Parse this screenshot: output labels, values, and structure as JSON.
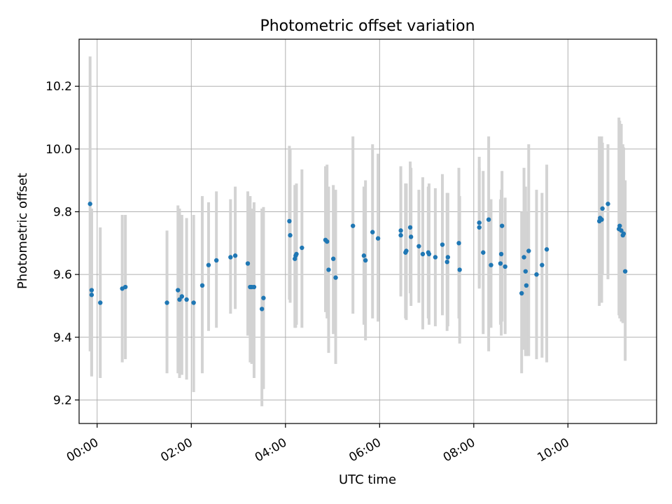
{
  "chart_data": {
    "type": "scatter",
    "title": "Photometric offset variation",
    "xlabel": "UTC time",
    "ylabel": "Photometric offset",
    "xlim": [
      "23:37",
      "11:53"
    ],
    "ylim": [
      9.125,
      10.35
    ],
    "grid": true,
    "xticks": [
      "00:00",
      "02:00",
      "04:00",
      "06:00",
      "08:00",
      "10:00"
    ],
    "yticks": [
      "9.2",
      "9.4",
      "9.6",
      "9.8",
      "10.0",
      "10.2"
    ],
    "colors": {
      "point": "#1f77b4",
      "errorbar": "#d3d3d3",
      "grid": "#b0b0b0"
    },
    "series": [
      {
        "x": [
          "23:51",
          "23:53",
          "23:53",
          "00:04",
          "00:32",
          "00:36",
          "01:29",
          "01:43",
          "01:45",
          "01:48",
          "01:54",
          "02:03",
          "02:14",
          "02:22",
          "02:32",
          "02:50",
          "02:56",
          "03:12",
          "03:15",
          "03:17",
          "03:20",
          "03:30",
          "03:32",
          "04:05",
          "04:06",
          "04:12",
          "04:13",
          "04:14",
          "04:21",
          "04:51",
          "04:53",
          "04:55",
          "05:01",
          "05:04",
          "05:26",
          "05:40",
          "05:42",
          "05:51",
          "05:58",
          "06:27",
          "06:27",
          "06:33",
          "06:34",
          "06:39",
          "06:40",
          "06:50",
          "06:55",
          "07:02",
          "07:03",
          "07:11",
          "07:20",
          "07:26",
          "07:27",
          "07:41",
          "07:42",
          "08:07",
          "08:07",
          "08:12",
          "08:19",
          "08:22",
          "08:34",
          "08:35",
          "08:36",
          "08:40",
          "09:01",
          "09:04",
          "09:06",
          "09:07",
          "09:10",
          "09:20",
          "09:27",
          "09:33",
          "10:40",
          "10:41",
          "10:43",
          "10:44",
          "10:51",
          "11:05",
          "11:06",
          "11:08",
          "11:10",
          "11:11",
          "11:13"
        ],
        "y": [
          9.825,
          9.55,
          9.535,
          9.51,
          9.555,
          9.56,
          9.51,
          9.55,
          9.52,
          9.53,
          9.52,
          9.51,
          9.565,
          9.63,
          9.645,
          9.655,
          9.66,
          9.635,
          9.56,
          9.56,
          9.56,
          9.49,
          9.525,
          9.77,
          9.725,
          9.65,
          9.66,
          9.665,
          9.685,
          9.71,
          9.705,
          9.615,
          9.65,
          9.59,
          9.755,
          9.66,
          9.645,
          9.735,
          9.715,
          9.74,
          9.725,
          9.67,
          9.675,
          9.75,
          9.72,
          9.69,
          9.665,
          9.67,
          9.665,
          9.655,
          9.695,
          9.64,
          9.655,
          9.7,
          9.615,
          9.765,
          9.75,
          9.67,
          9.775,
          9.63,
          9.635,
          9.665,
          9.755,
          9.625,
          9.54,
          9.655,
          9.61,
          9.565,
          9.675,
          9.6,
          9.63,
          9.68,
          9.77,
          9.78,
          9.775,
          9.81,
          9.825,
          9.745,
          9.755,
          9.74,
          9.725,
          9.73,
          9.61
        ],
        "yerr_low": [
          9.355,
          9.28,
          9.275,
          9.27,
          9.32,
          9.33,
          9.285,
          9.285,
          9.27,
          9.28,
          9.265,
          9.225,
          9.285,
          9.42,
          9.43,
          9.475,
          9.49,
          9.405,
          9.32,
          9.315,
          9.27,
          9.18,
          9.235,
          9.52,
          9.51,
          9.43,
          9.43,
          9.44,
          9.43,
          9.48,
          9.46,
          9.35,
          9.41,
          9.315,
          9.475,
          9.44,
          9.39,
          9.46,
          9.45,
          9.53,
          9.55,
          9.46,
          9.455,
          9.54,
          9.5,
          9.51,
          9.425,
          9.46,
          9.44,
          9.435,
          9.47,
          9.42,
          9.435,
          9.46,
          9.38,
          9.555,
          9.56,
          9.41,
          9.355,
          9.43,
          9.44,
          9.405,
          9.45,
          9.41,
          9.285,
          9.36,
          9.34,
          9.34,
          9.34,
          9.33,
          9.335,
          9.32,
          9.5,
          9.55,
          9.51,
          9.6,
          9.585,
          9.47,
          9.46,
          9.45,
          9.445,
          9.47,
          9.325
        ],
        "yerr_high": [
          10.295,
          9.81,
          9.8,
          9.75,
          9.79,
          9.79,
          9.74,
          9.82,
          9.81,
          9.79,
          9.78,
          9.79,
          9.85,
          9.83,
          9.865,
          9.84,
          9.88,
          9.865,
          9.85,
          9.81,
          9.83,
          9.81,
          9.815,
          10.01,
          10.0,
          9.885,
          9.885,
          9.89,
          9.935,
          9.945,
          9.95,
          9.88,
          9.885,
          9.87,
          10.04,
          9.88,
          9.9,
          10.015,
          9.985,
          9.945,
          9.9,
          9.89,
          9.89,
          9.96,
          9.94,
          9.87,
          9.91,
          9.88,
          9.89,
          9.875,
          9.92,
          9.86,
          9.86,
          9.94,
          9.85,
          9.975,
          9.94,
          9.93,
          10.04,
          9.84,
          9.84,
          9.87,
          9.93,
          9.845,
          9.8,
          9.94,
          9.88,
          9.8,
          10.015,
          9.87,
          9.86,
          9.95,
          10.04,
          10.0,
          10.04,
          10.02,
          10.015,
          10.1,
          10.09,
          10.08,
          10.015,
          10.005,
          9.9
        ]
      }
    ]
  }
}
